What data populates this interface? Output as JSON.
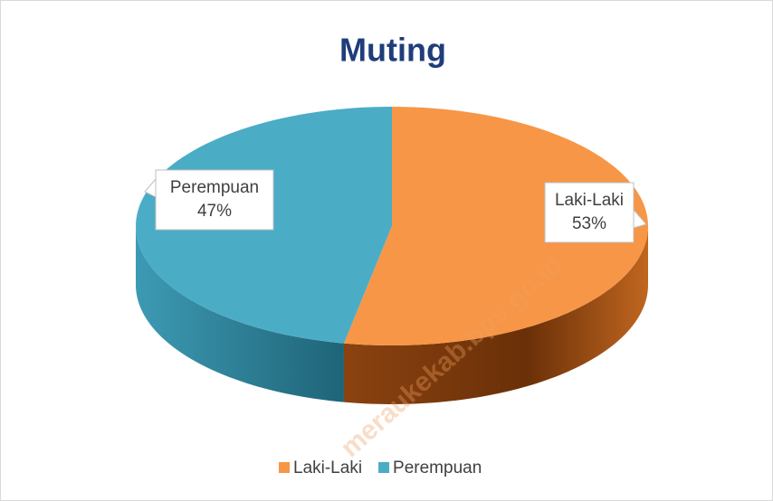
{
  "chart_data": {
    "type": "pie3d",
    "title": "Muting",
    "categories": [
      "Laki-Laki",
      "Perempuan"
    ],
    "values": [
      53,
      47
    ],
    "value_labels": [
      "53%",
      "47%"
    ],
    "colors": [
      "#f79646",
      "#4bacc6"
    ],
    "legend": "bottom",
    "watermark": "meraukekab.bps.go.id"
  }
}
